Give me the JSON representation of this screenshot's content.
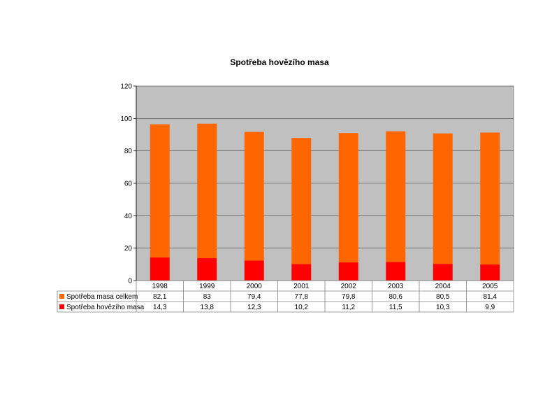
{
  "chart_data": {
    "type": "bar",
    "stacked": true,
    "title": "Spotřeba hovězího masa",
    "categories": [
      "1998",
      "1999",
      "2000",
      "2001",
      "2002",
      "2003",
      "2004",
      "2005"
    ],
    "series": [
      {
        "name": "Spotřeba masa celkem",
        "values": [
          82.1,
          83,
          79.4,
          77.8,
          79.8,
          80.6,
          80.5,
          81.4
        ],
        "labels": [
          "82,1",
          "83",
          "79,4",
          "77,8",
          "79,8",
          "80,6",
          "80,5",
          "81,4"
        ],
        "color": "#FF6600"
      },
      {
        "name": "Spotřeba hovězího masa",
        "values": [
          14.3,
          13.8,
          12.3,
          10.2,
          11.2,
          11.5,
          10.3,
          9.9
        ],
        "labels": [
          "14,3",
          "13,8",
          "12,3",
          "10,2",
          "11,2",
          "11,5",
          "10,3",
          "9,9"
        ],
        "color": "#FF0000"
      }
    ],
    "ylim": [
      0,
      120
    ],
    "yticks": [
      0,
      20,
      40,
      60,
      80,
      100,
      120
    ],
    "plot_background": "#C0C0C0",
    "grid": true,
    "data_table": true
  }
}
